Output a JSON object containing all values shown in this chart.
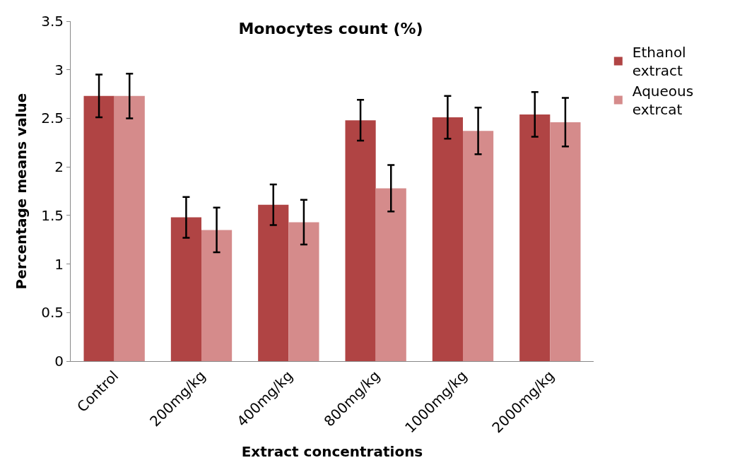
{
  "chart_data": {
    "type": "bar",
    "title": "Monocytes count (%)",
    "xlabel": "Extract concentrations",
    "ylabel": "Percentage means value",
    "categories": [
      "Control",
      "200mg/kg",
      "400mg/kg",
      "800mg/kg",
      "1000mg/kg",
      "2000mg/kg"
    ],
    "series": [
      {
        "name": "Ethanol extract",
        "color": "#b04444",
        "values": [
          2.73,
          1.48,
          1.61,
          2.48,
          2.51,
          2.54
        ],
        "errors": [
          0.22,
          0.21,
          0.21,
          0.21,
          0.22,
          0.23
        ]
      },
      {
        "name": "Aqueous extrcat",
        "color": "#d58b8b",
        "values": [
          2.73,
          1.35,
          1.43,
          1.78,
          2.37,
          2.46
        ],
        "errors": [
          0.23,
          0.23,
          0.23,
          0.24,
          0.24,
          0.25
        ]
      }
    ],
    "ylim": [
      0,
      3.5
    ],
    "yticks": [
      0,
      0.5,
      1,
      1.5,
      2,
      2.5,
      3,
      3.5
    ],
    "legend": "right"
  }
}
